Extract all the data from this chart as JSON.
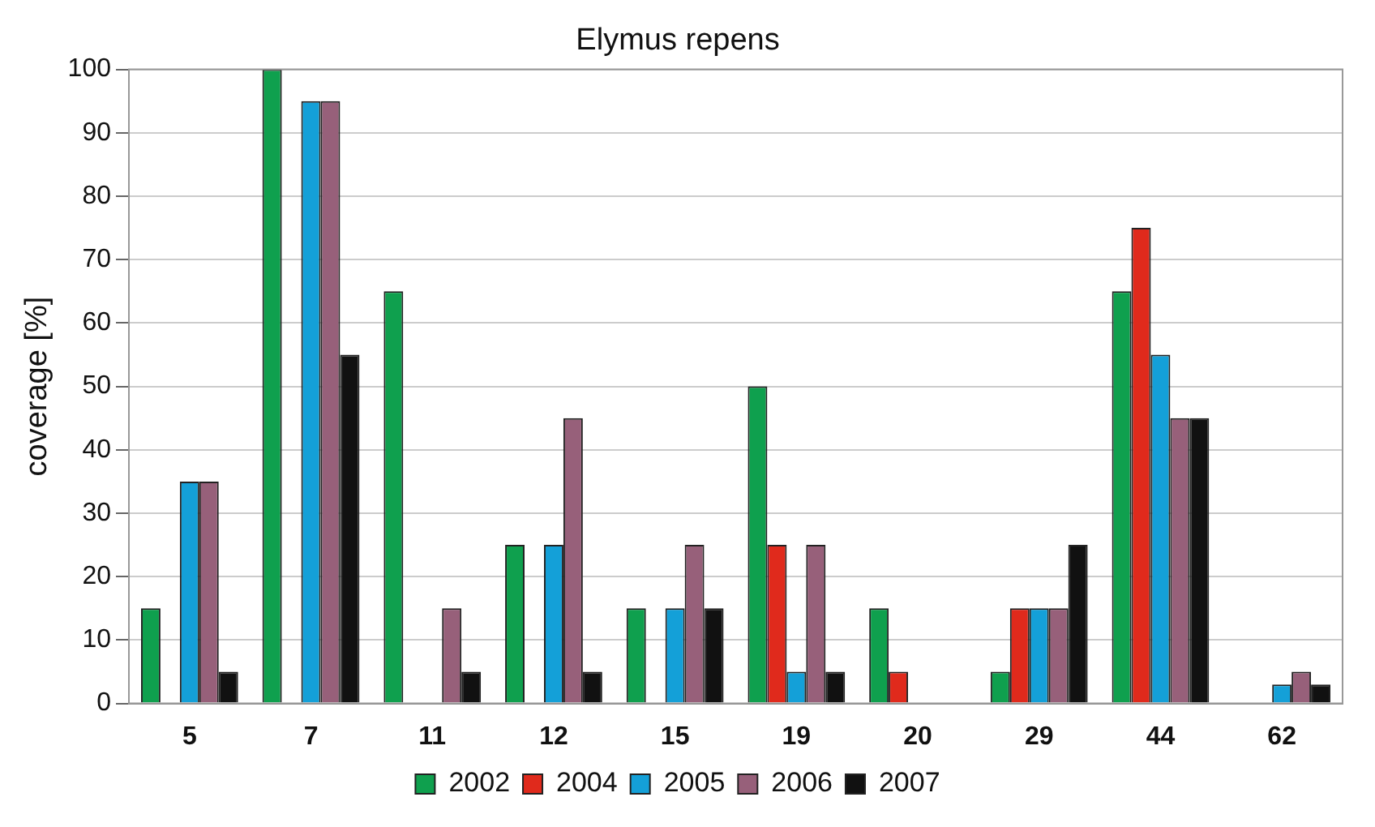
{
  "chart_data": {
    "type": "bar",
    "title": "Elymus repens",
    "ylabel": "coverage [%]",
    "categories": [
      "5",
      "7",
      "11",
      "12",
      "15",
      "19",
      "20",
      "29",
      "44",
      "62"
    ],
    "series": [
      {
        "name": "2002",
        "color": "#0fa04e",
        "values": [
          15,
          100,
          65,
          25,
          15,
          50,
          15,
          5,
          65,
          0
        ]
      },
      {
        "name": "2004",
        "color": "#e02a1c",
        "values": [
          0,
          0,
          0,
          0,
          0,
          25,
          5,
          15,
          75,
          0
        ]
      },
      {
        "name": "2005",
        "color": "#14a0d8",
        "values": [
          35,
          95,
          0,
          25,
          15,
          5,
          0,
          15,
          55,
          3
        ]
      },
      {
        "name": "2006",
        "color": "#97607a",
        "values": [
          35,
          95,
          15,
          45,
          25,
          25,
          0,
          15,
          45,
          5
        ]
      },
      {
        "name": "2007",
        "color": "#111111",
        "values": [
          5,
          55,
          5,
          5,
          15,
          5,
          0,
          25,
          45,
          3
        ]
      }
    ],
    "ylim": [
      0,
      100
    ],
    "yticks": [
      0,
      10,
      20,
      30,
      40,
      50,
      60,
      70,
      80,
      90,
      100
    ],
    "grid": "y",
    "legend": "bottom"
  }
}
